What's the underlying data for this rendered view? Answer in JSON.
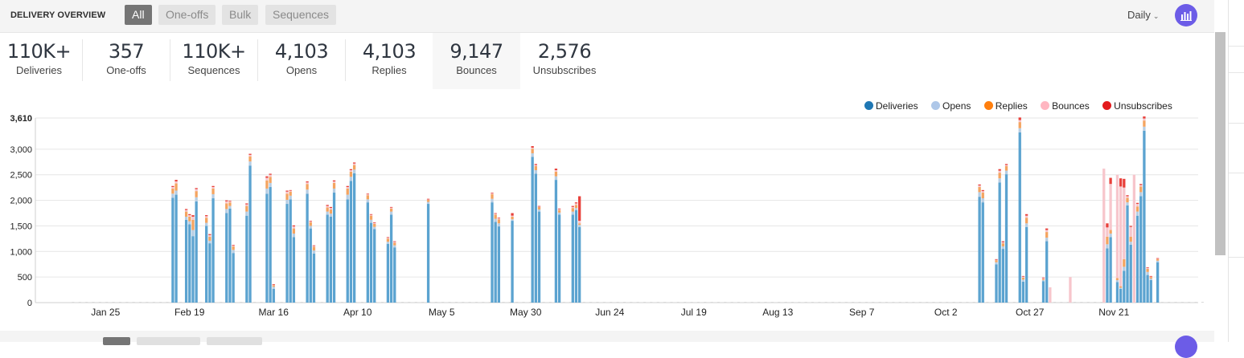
{
  "header": {
    "title": "DELIVERY OVERVIEW",
    "filters": [
      "All",
      "One-offs",
      "Bulk",
      "Sequences"
    ],
    "active_filter": "All",
    "interval_label": "Daily",
    "chart_toggle_icon": "bar-chart-icon"
  },
  "stats": [
    {
      "value": "110K+",
      "label": "Deliveries"
    },
    {
      "value": "357",
      "label": "One-offs"
    },
    {
      "value": "110K+",
      "label": "Sequences"
    },
    {
      "value": "4,103",
      "label": "Opens"
    },
    {
      "value": "4,103",
      "label": "Replies"
    },
    {
      "value": "9,147",
      "label": "Bounces"
    },
    {
      "value": "2,576",
      "label": "Unsubscribes"
    }
  ],
  "selected_stat": "Bounces",
  "legend": [
    {
      "name": "Deliveries",
      "color": "#1f77b4"
    },
    {
      "name": "Opens",
      "color": "#aec7e8"
    },
    {
      "name": "Replies",
      "color": "#ff7f0e"
    },
    {
      "name": "Bounces",
      "color": "#ffb6c1"
    },
    {
      "name": "Unsubscribes",
      "color": "#e31a1c"
    }
  ],
  "chart_data": {
    "type": "bar",
    "stacked": true,
    "y_tick_labels": [
      "0",
      "500",
      "1,000",
      "1,500",
      "2,000",
      "2,500",
      "3,000",
      "3,610"
    ],
    "ylim": [
      0,
      3610
    ],
    "x_tick_labels": [
      "Jan 25",
      "Feb 19",
      "Mar 16",
      "Apr 10",
      "May 5",
      "May 30",
      "Jun 24",
      "Jul 19",
      "Aug 13",
      "Sep 7",
      "Oct 2",
      "Oct 27",
      "Nov 21"
    ],
    "x_range_days": [
      0,
      355
    ],
    "x_tick_days": [
      18,
      43,
      68,
      93,
      118,
      143,
      168,
      193,
      218,
      243,
      268,
      293,
      318
    ],
    "series_colors": {
      "deliveries": "#5ba3d0",
      "opens": "#b7cde3",
      "replies": "#f4a460",
      "bounces": "#f7c6cc",
      "unsubscribes": "#e8403a"
    },
    "bars": [
      {
        "day": 38,
        "deliveries": 2050,
        "opens": 80,
        "replies": 100,
        "bounces": 30,
        "unsubscribes": 20
      },
      {
        "day": 39,
        "deliveries": 2110,
        "opens": 80,
        "replies": 140,
        "bounces": 40,
        "unsubscribes": 30
      },
      {
        "day": 42,
        "deliveries": 1620,
        "opens": 60,
        "replies": 100,
        "bounces": 30,
        "unsubscribes": 20
      },
      {
        "day": 43,
        "deliveries": 1530,
        "opens": 60,
        "replies": 90,
        "bounces": 30,
        "unsubscribes": 20
      },
      {
        "day": 44,
        "deliveries": 1300,
        "opens": 120,
        "replies": 200,
        "bounces": 60,
        "unsubscribes": 30
      },
      {
        "day": 45,
        "deliveries": 1980,
        "opens": 80,
        "replies": 120,
        "bounces": 40,
        "unsubscribes": 20
      },
      {
        "day": 48,
        "deliveries": 1500,
        "opens": 60,
        "replies": 100,
        "bounces": 30,
        "unsubscribes": 20
      },
      {
        "day": 49,
        "deliveries": 1160,
        "opens": 50,
        "replies": 80,
        "bounces": 30,
        "unsubscribes": 20
      },
      {
        "day": 50,
        "deliveries": 2040,
        "opens": 80,
        "replies": 110,
        "bounces": 30,
        "unsubscribes": 20
      },
      {
        "day": 54,
        "deliveries": 1750,
        "opens": 80,
        "replies": 110,
        "bounces": 40,
        "unsubscribes": 20
      },
      {
        "day": 55,
        "deliveries": 1840,
        "opens": 50,
        "replies": 70,
        "bounces": 20,
        "unsubscribes": 10
      },
      {
        "day": 56,
        "deliveries": 970,
        "opens": 60,
        "replies": 70,
        "bounces": 20,
        "unsubscribes": 10
      },
      {
        "day": 60,
        "deliveries": 1700,
        "opens": 80,
        "replies": 110,
        "bounces": 30,
        "unsubscribes": 20
      },
      {
        "day": 61,
        "deliveries": 2680,
        "opens": 80,
        "replies": 100,
        "bounces": 30,
        "unsubscribes": 20
      },
      {
        "day": 66,
        "deliveries": 2130,
        "opens": 100,
        "replies": 160,
        "bounces": 50,
        "unsubscribes": 30
      },
      {
        "day": 67,
        "deliveries": 2260,
        "opens": 80,
        "replies": 120,
        "bounces": 40,
        "unsubscribes": 20
      },
      {
        "day": 68,
        "deliveries": 270,
        "opens": 40,
        "replies": 30,
        "bounces": 10,
        "unsubscribes": 10
      },
      {
        "day": 72,
        "deliveries": 1930,
        "opens": 80,
        "replies": 120,
        "bounces": 40,
        "unsubscribes": 20
      },
      {
        "day": 73,
        "deliveries": 2020,
        "opens": 70,
        "replies": 80,
        "bounces": 20,
        "unsubscribes": 10
      },
      {
        "day": 74,
        "deliveries": 1280,
        "opens": 70,
        "replies": 100,
        "bounces": 40,
        "unsubscribes": 20
      },
      {
        "day": 78,
        "deliveries": 2130,
        "opens": 80,
        "replies": 110,
        "bounces": 30,
        "unsubscribes": 20
      },
      {
        "day": 79,
        "deliveries": 1450,
        "opens": 50,
        "replies": 70,
        "bounces": 20,
        "unsubscribes": 10
      },
      {
        "day": 80,
        "deliveries": 960,
        "opens": 60,
        "replies": 70,
        "bounces": 20,
        "unsubscribes": 10
      },
      {
        "day": 84,
        "deliveries": 1720,
        "opens": 60,
        "replies": 80,
        "bounces": 30,
        "unsubscribes": 20
      },
      {
        "day": 85,
        "deliveries": 1680,
        "opens": 60,
        "replies": 80,
        "bounces": 30,
        "unsubscribes": 20
      },
      {
        "day": 86,
        "deliveries": 2150,
        "opens": 80,
        "replies": 110,
        "bounces": 30,
        "unsubscribes": 20
      },
      {
        "day": 90,
        "deliveries": 2020,
        "opens": 90,
        "replies": 120,
        "bounces": 30,
        "unsubscribes": 20
      },
      {
        "day": 91,
        "deliveries": 2380,
        "opens": 80,
        "replies": 100,
        "bounces": 30,
        "unsubscribes": 20
      },
      {
        "day": 92,
        "deliveries": 2530,
        "opens": 70,
        "replies": 90,
        "bounces": 30,
        "unsubscribes": 20
      },
      {
        "day": 96,
        "deliveries": 1960,
        "opens": 60,
        "replies": 80,
        "bounces": 20,
        "unsubscribes": 10
      },
      {
        "day": 97,
        "deliveries": 1560,
        "opens": 60,
        "replies": 80,
        "bounces": 20,
        "unsubscribes": 10
      },
      {
        "day": 98,
        "deliveries": 1440,
        "opens": 40,
        "replies": 60,
        "bounces": 20,
        "unsubscribes": 10
      },
      {
        "day": 102,
        "deliveries": 1150,
        "opens": 40,
        "replies": 60,
        "bounces": 20,
        "unsubscribes": 10
      },
      {
        "day": 103,
        "deliveries": 1720,
        "opens": 60,
        "replies": 60,
        "bounces": 20,
        "unsubscribes": 10
      },
      {
        "day": 104,
        "deliveries": 1080,
        "opens": 40,
        "replies": 50,
        "bounces": 20,
        "unsubscribes": 10
      },
      {
        "day": 114,
        "deliveries": 1930,
        "opens": 40,
        "replies": 40,
        "bounces": 10,
        "unsubscribes": 10
      },
      {
        "day": 133,
        "deliveries": 1960,
        "opens": 70,
        "replies": 90,
        "bounces": 20,
        "unsubscribes": 10
      },
      {
        "day": 134,
        "deliveries": 1580,
        "opens": 60,
        "replies": 80,
        "bounces": 20,
        "unsubscribes": 10
      },
      {
        "day": 135,
        "deliveries": 1490,
        "opens": 60,
        "replies": 80,
        "bounces": 20,
        "unsubscribes": 10
      },
      {
        "day": 139,
        "deliveries": 1600,
        "opens": 30,
        "replies": 50,
        "bounces": 20,
        "unsubscribes": 50
      },
      {
        "day": 145,
        "deliveries": 2850,
        "opens": 70,
        "replies": 90,
        "bounces": 20,
        "unsubscribes": 30
      },
      {
        "day": 146,
        "deliveries": 2520,
        "opens": 70,
        "replies": 80,
        "bounces": 20,
        "unsubscribes": 20
      },
      {
        "day": 147,
        "deliveries": 1780,
        "opens": 40,
        "replies": 50,
        "bounces": 10,
        "unsubscribes": 10
      },
      {
        "day": 152,
        "deliveries": 2400,
        "opens": 70,
        "replies": 90,
        "bounces": 30,
        "unsubscribes": 30
      },
      {
        "day": 153,
        "deliveries": 1720,
        "opens": 40,
        "replies": 50,
        "bounces": 20,
        "unsubscribes": 10
      },
      {
        "day": 157,
        "deliveries": 1720,
        "opens": 60,
        "replies": 70,
        "bounces": 20,
        "unsubscribes": 20
      },
      {
        "day": 158,
        "deliveries": 1810,
        "opens": 40,
        "replies": 60,
        "bounces": 30,
        "unsubscribes": 20
      },
      {
        "day": 159,
        "deliveries": 1480,
        "opens": 40,
        "replies": 30,
        "bounces": 50,
        "unsubscribes": 480
      },
      {
        "day": 278,
        "deliveries": 2070,
        "opens": 90,
        "replies": 100,
        "bounces": 30,
        "unsubscribes": 20
      },
      {
        "day": 279,
        "deliveries": 1960,
        "opens": 80,
        "replies": 110,
        "bounces": 30,
        "unsubscribes": 20
      },
      {
        "day": 283,
        "deliveries": 750,
        "opens": 40,
        "replies": 40,
        "bounces": 10,
        "unsubscribes": 10
      },
      {
        "day": 284,
        "deliveries": 2350,
        "opens": 80,
        "replies": 110,
        "bounces": 40,
        "unsubscribes": 30
      },
      {
        "day": 285,
        "deliveries": 1050,
        "opens": 50,
        "replies": 60,
        "bounces": 20,
        "unsubscribes": 20
      },
      {
        "day": 286,
        "deliveries": 2510,
        "opens": 70,
        "replies": 90,
        "bounces": 20,
        "unsubscribes": 20
      },
      {
        "day": 290,
        "deliveries": 3330,
        "opens": 80,
        "replies": 120,
        "bounces": 40,
        "unsubscribes": 50
      },
      {
        "day": 291,
        "deliveries": 410,
        "opens": 40,
        "replies": 40,
        "bounces": 20,
        "unsubscribes": 10
      },
      {
        "day": 292,
        "deliveries": 1480,
        "opens": 70,
        "replies": 110,
        "bounces": 40,
        "unsubscribes": 30
      },
      {
        "day": 297,
        "deliveries": 420,
        "opens": 20,
        "replies": 20,
        "bounces": 20,
        "unsubscribes": 10
      },
      {
        "day": 298,
        "deliveries": 1200,
        "opens": 70,
        "replies": 110,
        "bounces": 40,
        "unsubscribes": 30
      },
      {
        "day": 299,
        "deliveries": 0,
        "opens": 0,
        "replies": 0,
        "bounces": 300,
        "unsubscribes": 0
      },
      {
        "day": 305,
        "deliveries": 0,
        "opens": 0,
        "replies": 0,
        "bounces": 500,
        "unsubscribes": 0
      },
      {
        "day": 315,
        "deliveries": 0,
        "opens": 0,
        "replies": 0,
        "bounces": 2620,
        "unsubscribes": 0
      },
      {
        "day": 316,
        "deliveries": 1060,
        "opens": 80,
        "replies": 150,
        "bounces": 180,
        "unsubscribes": 80
      },
      {
        "day": 317,
        "deliveries": 1280,
        "opens": 70,
        "replies": 70,
        "bounces": 900,
        "unsubscribes": 120
      },
      {
        "day": 319,
        "deliveries": 400,
        "opens": 40,
        "replies": 40,
        "bounces": 2020,
        "unsubscribes": 0
      },
      {
        "day": 320,
        "deliveries": 270,
        "opens": 20,
        "replies": 30,
        "bounces": 1950,
        "unsubscribes": 160
      },
      {
        "day": 321,
        "deliveries": 620,
        "opens": 80,
        "replies": 150,
        "bounces": 1400,
        "unsubscribes": 170
      },
      {
        "day": 322,
        "deliveries": 1900,
        "opens": 60,
        "replies": 90,
        "bounces": 30,
        "unsubscribes": 20
      },
      {
        "day": 323,
        "deliveries": 1130,
        "opens": 60,
        "replies": 100,
        "bounces": 190,
        "unsubscribes": 20
      },
      {
        "day": 324,
        "deliveries": 0,
        "opens": 0,
        "replies": 0,
        "bounces": 2500,
        "unsubscribes": 0
      },
      {
        "day": 325,
        "deliveries": 1700,
        "opens": 80,
        "replies": 100,
        "bounces": 50,
        "unsubscribes": 20
      },
      {
        "day": 326,
        "deliveries": 2080,
        "opens": 80,
        "replies": 110,
        "bounces": 30,
        "unsubscribes": 20
      },
      {
        "day": 327,
        "deliveries": 3360,
        "opens": 80,
        "replies": 120,
        "bounces": 40,
        "unsubscribes": 40
      },
      {
        "day": 328,
        "deliveries": 540,
        "opens": 60,
        "replies": 60,
        "bounces": 20,
        "unsubscribes": 10
      },
      {
        "day": 329,
        "deliveries": 440,
        "opens": 30,
        "replies": 30,
        "bounces": 10,
        "unsubscribes": 10
      },
      {
        "day": 331,
        "deliveries": 790,
        "opens": 30,
        "replies": 30,
        "bounces": 10,
        "unsubscribes": 10
      }
    ]
  }
}
